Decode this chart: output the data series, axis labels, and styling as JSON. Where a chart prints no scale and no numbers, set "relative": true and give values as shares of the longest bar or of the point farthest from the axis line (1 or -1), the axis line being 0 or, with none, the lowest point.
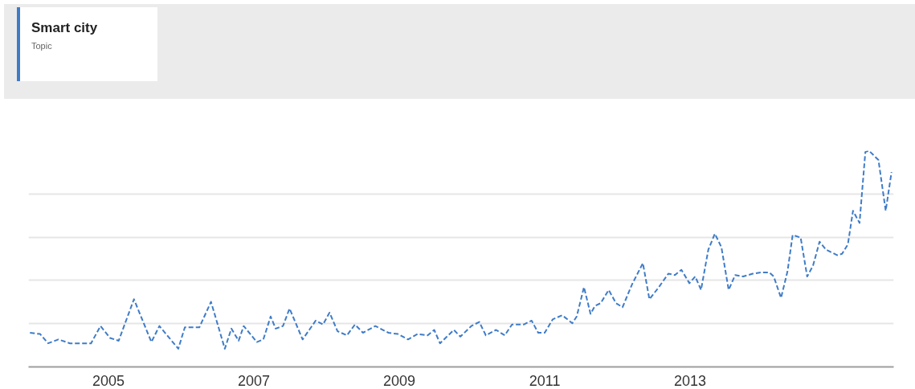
{
  "chart_data": {
    "type": "line",
    "relative": true,
    "line_style": "dashed",
    "marker": "none",
    "grid": "y",
    "legend": "top left",
    "annotations": [
      "Topic"
    ],
    "xlim": [
      2003.9,
      2015.8
    ],
    "xticks": [
      2005,
      2007,
      2009,
      2011,
      2013
    ],
    "x": [
      2003.92,
      2004.06,
      2004.17,
      2004.31,
      2004.47,
      2004.76,
      2004.89,
      2005.02,
      2005.14,
      2005.35,
      2005.59,
      2005.7,
      2005.96,
      2006.05,
      2006.25,
      2006.41,
      2006.6,
      2006.69,
      2006.79,
      2006.86,
      2007.04,
      2007.13,
      2007.23,
      2007.3,
      2007.4,
      2007.49,
      2007.67,
      2007.85,
      2007.95,
      2008.04,
      2008.15,
      2008.28,
      2008.39,
      2008.5,
      2008.67,
      2008.85,
      2008.98,
      2009.12,
      2009.25,
      2009.39,
      2009.48,
      2009.56,
      2009.75,
      2009.84,
      2009.99,
      2010.1,
      2010.19,
      2010.33,
      2010.45,
      2010.55,
      2010.71,
      2010.82,
      2010.91,
      2011.0,
      2011.11,
      2011.24,
      2011.38,
      2011.44,
      2011.54,
      2011.63,
      2011.69,
      2011.77,
      2011.88,
      2011.98,
      2012.07,
      2012.2,
      2012.35,
      2012.44,
      2012.57,
      2012.7,
      2012.79,
      2012.88,
      2012.99,
      2013.07,
      2013.15,
      2013.25,
      2013.34,
      2013.43,
      2013.53,
      2013.62,
      2013.73,
      2013.86,
      2013.97,
      2014.09,
      2014.15,
      2014.25,
      2014.34,
      2014.41,
      2014.52,
      2014.61,
      2014.69,
      2014.78,
      2014.87,
      2015.02,
      2015.09,
      2015.17,
      2015.24,
      2015.33,
      2015.41,
      2015.46,
      2015.59,
      2015.69,
      2015.77
    ],
    "series": [
      {
        "name": "Smart city",
        "color": "#3f7cc8",
        "values": [
          0.158,
          0.152,
          0.109,
          0.127,
          0.109,
          0.109,
          0.189,
          0.134,
          0.121,
          0.313,
          0.115,
          0.189,
          0.084,
          0.183,
          0.183,
          0.301,
          0.084,
          0.177,
          0.121,
          0.189,
          0.115,
          0.127,
          0.233,
          0.177,
          0.189,
          0.27,
          0.127,
          0.214,
          0.196,
          0.251,
          0.165,
          0.146,
          0.196,
          0.158,
          0.189,
          0.158,
          0.152,
          0.127,
          0.152,
          0.146,
          0.171,
          0.109,
          0.171,
          0.14,
          0.189,
          0.208,
          0.146,
          0.171,
          0.146,
          0.196,
          0.196,
          0.214,
          0.158,
          0.158,
          0.22,
          0.239,
          0.202,
          0.233,
          0.369,
          0.245,
          0.282,
          0.295,
          0.356,
          0.295,
          0.276,
          0.381,
          0.48,
          0.313,
          0.369,
          0.431,
          0.425,
          0.449,
          0.387,
          0.418,
          0.356,
          0.542,
          0.616,
          0.554,
          0.356,
          0.425,
          0.418,
          0.431,
          0.437,
          0.437,
          0.418,
          0.319,
          0.443,
          0.61,
          0.598,
          0.418,
          0.468,
          0.579,
          0.542,
          0.517,
          0.523,
          0.567,
          0.722,
          0.666,
          0.994,
          1.0,
          0.957,
          0.722,
          0.901
        ]
      }
    ]
  }
}
